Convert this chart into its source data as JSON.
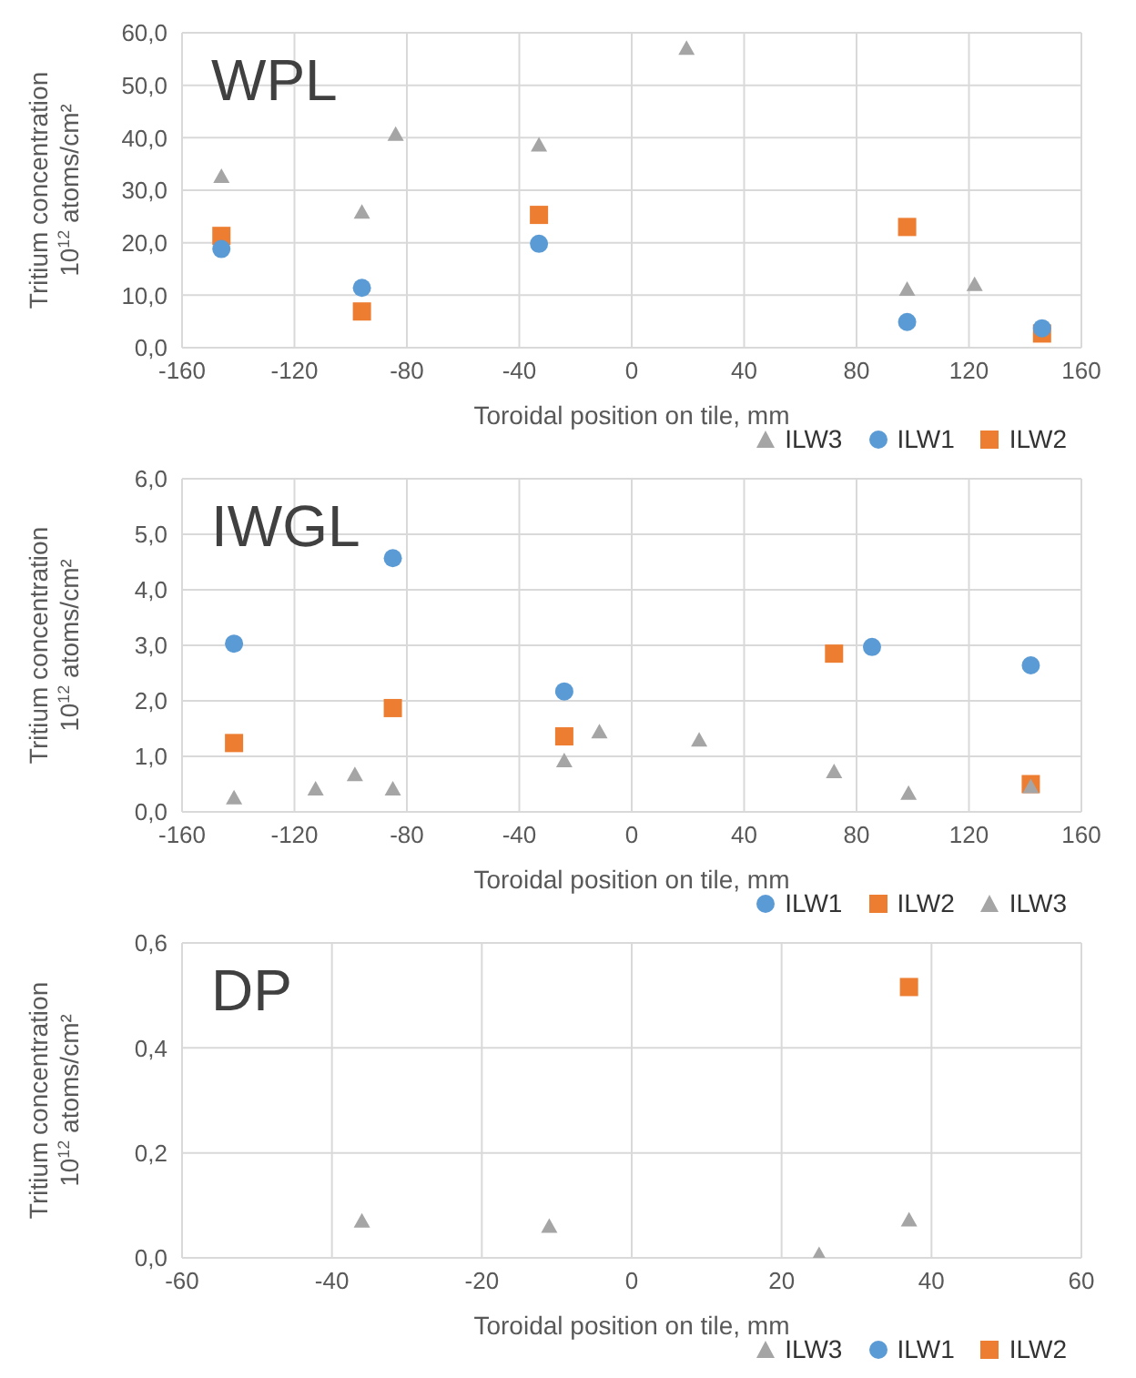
{
  "chart_data": [
    {
      "type": "scatter",
      "title": "WPL",
      "xlabel": "Toroidal position on tile, mm",
      "ylabel": "Tritium concentration\n10$^{12}$ atoms/cm²",
      "xlim": [
        -160,
        160
      ],
      "xticks": [
        -160,
        -120,
        -80,
        -40,
        0,
        40,
        80,
        120,
        160
      ],
      "ylim": [
        0,
        60
      ],
      "yticks": [
        {
          "value": 0,
          "label": "0,0"
        },
        {
          "value": 10,
          "label": "10,0"
        },
        {
          "value": 20,
          "label": "20,0"
        },
        {
          "value": 30,
          "label": "30,0"
        },
        {
          "value": 40,
          "label": "40,0"
        },
        {
          "value": 50,
          "label": "50,0"
        },
        {
          "value": 60,
          "label": "60,0"
        }
      ],
      "grid": true,
      "legend": "bottom right",
      "series": [
        {
          "name": "ILW3",
          "color": "#a5a5a5",
          "marker": "triangle",
          "x": [
            -146,
            -96,
            -84,
            -33,
            19.5,
            98,
            122
          ],
          "values": [
            32.6,
            25.8,
            40.6,
            38.6,
            57.0,
            11.1,
            12.0
          ]
        },
        {
          "name": "ILW1",
          "color": "#5b9bd5",
          "marker": "circle",
          "x": [
            -146,
            -96,
            -33,
            98,
            146
          ],
          "values": [
            18.8,
            11.4,
            19.8,
            4.9,
            3.7
          ]
        },
        {
          "name": "ILW2",
          "color": "#ed7d31",
          "marker": "square",
          "x": [
            -146,
            -96,
            -33,
            98,
            146
          ],
          "values": [
            21.3,
            6.9,
            25.3,
            23.0,
            2.7
          ]
        }
      ]
    },
    {
      "type": "scatter",
      "title": "IWGL",
      "xlabel": "Toroidal position on tile, mm",
      "ylabel": "Tritium concentration\n10$^{12}$ atoms/cm²",
      "xlim": [
        -160,
        160
      ],
      "xticks": [
        -160,
        -120,
        -80,
        -40,
        0,
        40,
        80,
        120,
        160
      ],
      "ylim": [
        0,
        6
      ],
      "yticks": [
        {
          "value": 0,
          "label": "0,0"
        },
        {
          "value": 1,
          "label": "1,0"
        },
        {
          "value": 2,
          "label": "2,0"
        },
        {
          "value": 3,
          "label": "3,0"
        },
        {
          "value": 4,
          "label": "4,0"
        },
        {
          "value": 5,
          "label": "5,0"
        },
        {
          "value": 6,
          "label": "6,0"
        }
      ],
      "grid": true,
      "legend": "bottom right",
      "series": [
        {
          "name": "ILW1",
          "color": "#5b9bd5",
          "marker": "circle",
          "x": [
            -141.5,
            -85,
            -24,
            85.5,
            142
          ],
          "values": [
            3.03,
            4.57,
            2.17,
            2.97,
            2.64
          ]
        },
        {
          "name": "ILW2",
          "color": "#ed7d31",
          "marker": "square",
          "x": [
            -141.5,
            -85,
            -24,
            72,
            142
          ],
          "values": [
            1.24,
            1.87,
            1.36,
            2.85,
            0.5
          ]
        },
        {
          "name": "ILW3",
          "color": "#a5a5a5",
          "marker": "triangle",
          "x": [
            -141.5,
            -112.5,
            -98.5,
            -85,
            -24,
            -11.5,
            24,
            72,
            98.5,
            142
          ],
          "values": [
            0.25,
            0.41,
            0.67,
            0.41,
            0.92,
            1.44,
            1.29,
            0.72,
            0.33,
            0.45
          ]
        }
      ]
    },
    {
      "type": "scatter",
      "title": "DP",
      "xlabel": "Toroidal position on tile, mm",
      "ylabel": "Tritium concentration\n10$^{12}$ atoms/cm²",
      "xlim": [
        -60,
        60
      ],
      "xticks": [
        -60,
        -40,
        -20,
        0,
        20,
        40,
        60
      ],
      "ylim": [
        0,
        0.6
      ],
      "yticks": [
        {
          "value": 0,
          "label": "0,0"
        },
        {
          "value": 0.2,
          "label": "0,2"
        },
        {
          "value": 0.4,
          "label": "0,4"
        },
        {
          "value": 0.6,
          "label": "0,6"
        }
      ],
      "grid": true,
      "legend": "bottom right",
      "series": [
        {
          "name": "ILW3",
          "color": "#a5a5a5",
          "marker": "triangle",
          "x": [
            -36,
            -11,
            25,
            37
          ],
          "values": [
            0.07,
            0.06,
            0.006,
            0.072
          ]
        },
        {
          "name": "ILW1",
          "color": "#5b9bd5",
          "marker": "circle"
        },
        {
          "name": "ILW2",
          "color": "#ed7d31",
          "marker": "square",
          "x": [
            37
          ],
          "values": [
            0.516
          ]
        }
      ]
    }
  ]
}
